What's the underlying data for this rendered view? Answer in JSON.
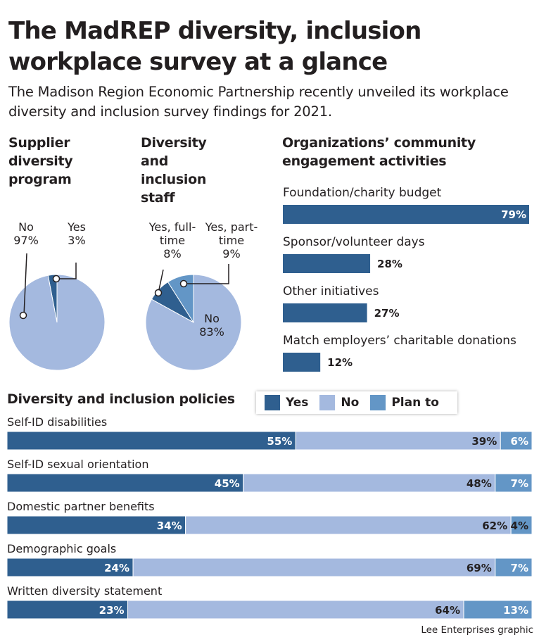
{
  "title": "The MadREP diversity, inclusion workplace survey at a glance",
  "subtitle": "The Madison Region Economic Partnership recently unveiled its workplace diversity and inclusion survey findings for 2021.",
  "colors": {
    "yes": "#2f5f8f",
    "no": "#a4b9df",
    "plan_to": "#6396c6",
    "text": "#231f20"
  },
  "credit": "Lee Enterprises graphic",
  "chart_data": [
    {
      "type": "pie",
      "title": "Supplier diversity program",
      "slices": [
        {
          "label": "Yes",
          "value": 3,
          "display": "3%",
          "color": "#2f5f8f"
        },
        {
          "label": "No",
          "value": 97,
          "display": "97%",
          "color": "#a4b9df"
        }
      ]
    },
    {
      "type": "pie",
      "title": "Diversity and inclusion staff",
      "slices": [
        {
          "label": "Yes, full-time",
          "value": 8,
          "display": "8%",
          "color": "#2f5f8f"
        },
        {
          "label": "Yes, part-time",
          "value": 9,
          "display": "9%",
          "color": "#6396c6"
        },
        {
          "label": "No",
          "value": 83,
          "display": "83%",
          "color": "#a4b9df"
        }
      ]
    },
    {
      "type": "bar",
      "title": "Organizations’ community engagement activities",
      "categories": [
        "Foundation/charity budget",
        "Sponsor/volunteer days",
        "Other initiatives",
        "Match employers’ charitable donations"
      ],
      "values": [
        79,
        28,
        27,
        12
      ],
      "labels": [
        "79%",
        "28%",
        "27%",
        "12%"
      ],
      "xlim": [
        0,
        100
      ]
    },
    {
      "type": "bar",
      "stacked": true,
      "title": "Diversity and inclusion policies",
      "legend": [
        "Yes",
        "No",
        "Plan to"
      ],
      "legend_position": "top-right",
      "categories": [
        "Self-ID disabilities",
        "Self-ID sexual orientation",
        "Domestic partner benefits",
        "Demographic goals",
        "Written diversity statement"
      ],
      "series": [
        {
          "name": "Yes",
          "values": [
            55,
            45,
            34,
            24,
            23
          ]
        },
        {
          "name": "No",
          "values": [
            39,
            48,
            62,
            69,
            64
          ]
        },
        {
          "name": "Plan to",
          "values": [
            6,
            7,
            4,
            7,
            13
          ]
        }
      ]
    }
  ]
}
